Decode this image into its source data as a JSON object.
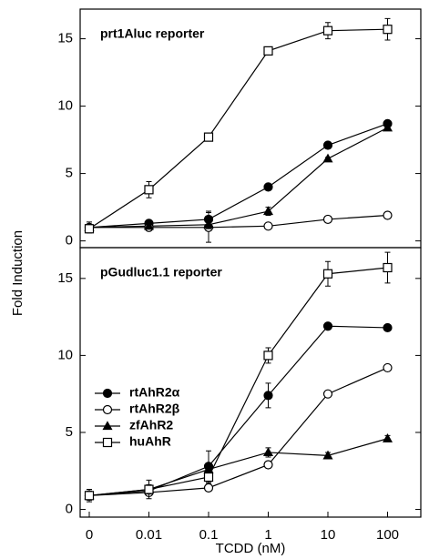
{
  "ylabel": "Fold Induction",
  "xlabel": "TCDD (nM)",
  "chart_data": [
    {
      "type": "line",
      "title": "prt1Aluc reporter",
      "ylim": [
        -0.5,
        17.2
      ],
      "yticks": [
        0,
        5,
        10,
        15
      ],
      "series": [
        {
          "marker": "filled-circle",
          "color": "#000",
          "values": [
            1.0,
            1.3,
            1.6,
            4.0,
            7.1,
            8.7
          ],
          "errors": [
            0.4,
            0.1,
            0.6,
            0.1,
            0.1,
            0.1
          ]
        },
        {
          "marker": "open-circle",
          "color": "#000",
          "values": [
            1.0,
            1.0,
            1.0,
            1.1,
            1.6,
            1.9
          ],
          "errors": [
            0.2,
            0.1,
            1.1,
            0.1,
            0.1,
            0.1
          ]
        },
        {
          "marker": "filled-triangle",
          "color": "#000",
          "values": [
            1.0,
            1.1,
            1.2,
            2.2,
            6.1,
            8.4
          ],
          "errors": [
            0.2,
            0.1,
            0.3,
            0.3,
            0.1,
            0.1
          ]
        },
        {
          "marker": "open-square",
          "color": "#000",
          "values": [
            0.9,
            3.8,
            7.7,
            14.1,
            15.6,
            15.7
          ],
          "errors": [
            0.3,
            0.6,
            0.3,
            0.3,
            0.6,
            0.8
          ]
        }
      ]
    },
    {
      "type": "line",
      "title": "pGudluc1.1 reporter",
      "categories": [
        "0",
        "0.01",
        "0.1",
        "1",
        "10",
        "100"
      ],
      "ylim": [
        -0.5,
        17.0
      ],
      "yticks": [
        0,
        5,
        10,
        15
      ],
      "legend": "upper-left",
      "series": [
        {
          "name": "rtAhR2α",
          "marker": "filled-circle",
          "color": "#000",
          "values": [
            0.9,
            1.2,
            2.8,
            7.4,
            11.9,
            11.8
          ],
          "errors": [
            0.3,
            0.3,
            1.0,
            0.8,
            0.2,
            0.2
          ]
        },
        {
          "name": "rtAhR2β",
          "marker": "open-circle",
          "color": "#000",
          "values": [
            0.9,
            1.1,
            1.4,
            2.9,
            7.5,
            9.2
          ],
          "errors": [
            0.1,
            0.1,
            0.1,
            0.1,
            0.1,
            0.1
          ]
        },
        {
          "name": "zfAhR2",
          "marker": "filled-triangle",
          "color": "#000",
          "values": [
            0.9,
            1.3,
            2.6,
            3.7,
            3.5,
            4.6
          ],
          "errors": [
            0.2,
            0.3,
            0.3,
            0.3,
            0.2,
            0.2
          ]
        },
        {
          "name": "huAhR",
          "marker": "open-square",
          "color": "#000",
          "values": [
            0.9,
            1.3,
            2.1,
            10.0,
            15.3,
            15.7
          ],
          "errors": [
            0.4,
            0.6,
            0.4,
            0.5,
            0.8,
            1.0
          ]
        }
      ]
    }
  ]
}
